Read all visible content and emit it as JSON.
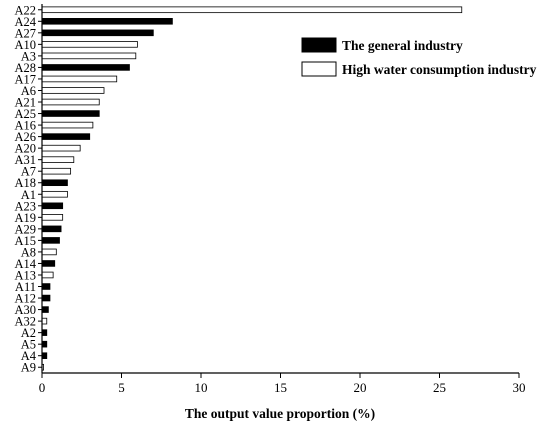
{
  "chart_data": {
    "type": "bar",
    "orientation": "horizontal",
    "xlabel": "The output value proportion (%)",
    "ylabel": "",
    "xlim": [
      0,
      30
    ],
    "xticks": [
      0,
      5,
      10,
      15,
      20,
      25,
      30
    ],
    "grid": false,
    "legend_position": "top-right",
    "categories": [
      "A22",
      "A24",
      "A27",
      "A10",
      "A3",
      "A28",
      "A17",
      "A6",
      "A21",
      "A25",
      "A16",
      "A26",
      "A20",
      "A31",
      "A7",
      "A18",
      "A1",
      "A23",
      "A19",
      "A29",
      "A15",
      "A8",
      "A14",
      "A13",
      "A11",
      "A12",
      "A30",
      "A32",
      "A2",
      "A5",
      "A4",
      "A9"
    ],
    "values": [
      26.4,
      8.2,
      7.0,
      6.0,
      5.9,
      5.5,
      4.7,
      3.9,
      3.6,
      3.6,
      3.2,
      3.0,
      2.4,
      2.0,
      1.8,
      1.6,
      1.6,
      1.3,
      1.3,
      1.2,
      1.1,
      0.9,
      0.8,
      0.7,
      0.5,
      0.5,
      0.4,
      0.3,
      0.3,
      0.3,
      0.3,
      0.1
    ],
    "groups": [
      "H",
      "G",
      "G",
      "H",
      "H",
      "G",
      "H",
      "H",
      "H",
      "G",
      "H",
      "G",
      "H",
      "H",
      "H",
      "G",
      "H",
      "G",
      "H",
      "G",
      "G",
      "H",
      "G",
      "H",
      "G",
      "G",
      "G",
      "H",
      "G",
      "G",
      "G",
      "H"
    ],
    "series": [
      {
        "key": "G",
        "name": "The general industry",
        "color": "#000000"
      },
      {
        "key": "H",
        "name": "High water consumption industry",
        "color": "#ffffff"
      }
    ]
  }
}
